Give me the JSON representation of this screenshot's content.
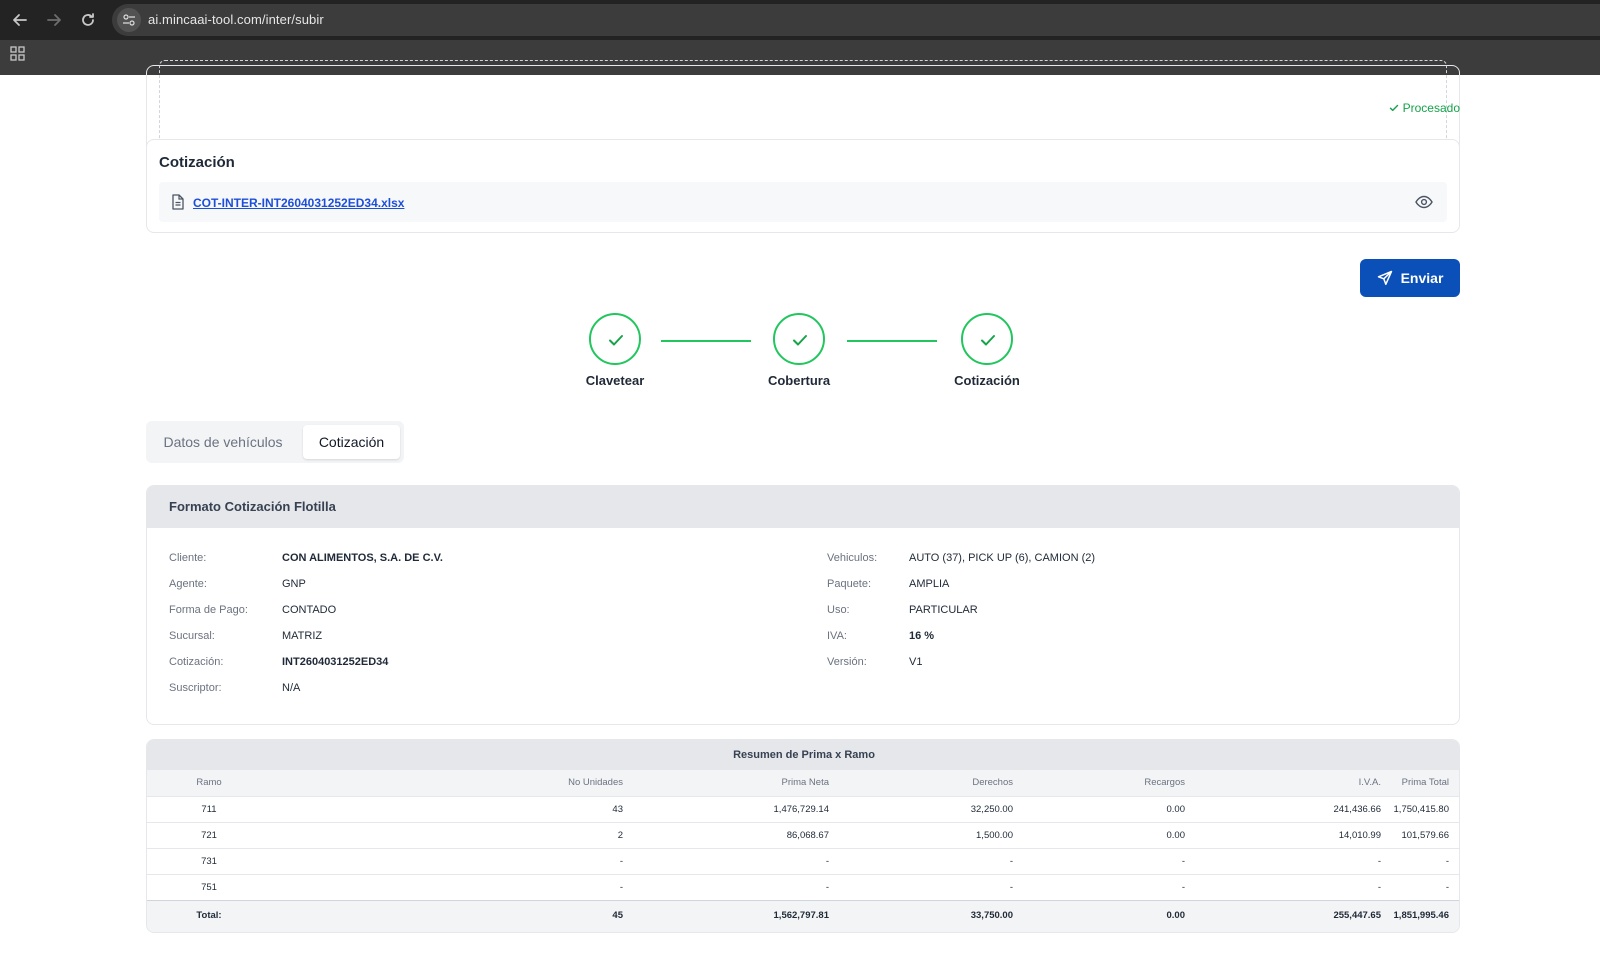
{
  "browser": {
    "url": "ai.mincaai-tool.com/inter/subir"
  },
  "status": {
    "processed": "Procesado"
  },
  "cotizacion_card": {
    "title": "Cotización",
    "file_name": "COT-INTER-INT2604031252ED34.xlsx"
  },
  "send_button": {
    "label": "Enviar"
  },
  "stepper": {
    "steps": [
      {
        "label": "Clavetear"
      },
      {
        "label": "Cobertura"
      },
      {
        "label": "Cotización"
      }
    ]
  },
  "tabs": [
    {
      "label": "Datos de vehículos"
    },
    {
      "label": "Cotización"
    }
  ],
  "formato": {
    "title": "Formato Cotización Flotilla",
    "left": [
      {
        "label": "Cliente:",
        "value": "CON ALIMENTOS, S.A. DE C.V."
      },
      {
        "label": "Agente:",
        "value": "GNP"
      },
      {
        "label": "Forma de Pago:",
        "value": "CONTADO"
      },
      {
        "label": "Sucursal:",
        "value": "MATRIZ"
      },
      {
        "label": "Cotización:",
        "value": "INT2604031252ED34"
      },
      {
        "label": "Suscriptor:",
        "value": "N/A"
      }
    ],
    "right": [
      {
        "label": "Vehiculos:",
        "value": "AUTO (37), PICK UP (6), CAMION (2)"
      },
      {
        "label": "Paquete:",
        "value": "AMPLIA"
      },
      {
        "label": "Uso:",
        "value": "PARTICULAR"
      },
      {
        "label": "IVA:",
        "value": "16 %"
      },
      {
        "label": "Versión:",
        "value": "V1"
      }
    ]
  },
  "resumen": {
    "title": "Resumen de Prima x Ramo",
    "headers": [
      "Ramo",
      "No Unidades",
      "Prima Neta",
      "Derechos",
      "Recargos",
      "I.V.A.",
      "Prima Total"
    ],
    "rows": [
      [
        "711",
        "43",
        "1,476,729.14",
        "32,250.00",
        "0.00",
        "241,436.66",
        "1,750,415.80"
      ],
      [
        "721",
        "2",
        "86,068.67",
        "1,500.00",
        "0.00",
        "14,010.99",
        "101,579.66"
      ],
      [
        "731",
        "-",
        "-",
        "-",
        "-",
        "-",
        "-"
      ],
      [
        "751",
        "-",
        "-",
        "-",
        "-",
        "-",
        "-"
      ]
    ],
    "total": [
      "Total:",
      "45",
      "1,562,797.81",
      "33,750.00",
      "0.00",
      "255,447.65",
      "1,851,995.46"
    ]
  },
  "colors": {
    "success": "#22c55e",
    "primary_button": "#0b4fb8",
    "link": "#1d4ed8"
  }
}
